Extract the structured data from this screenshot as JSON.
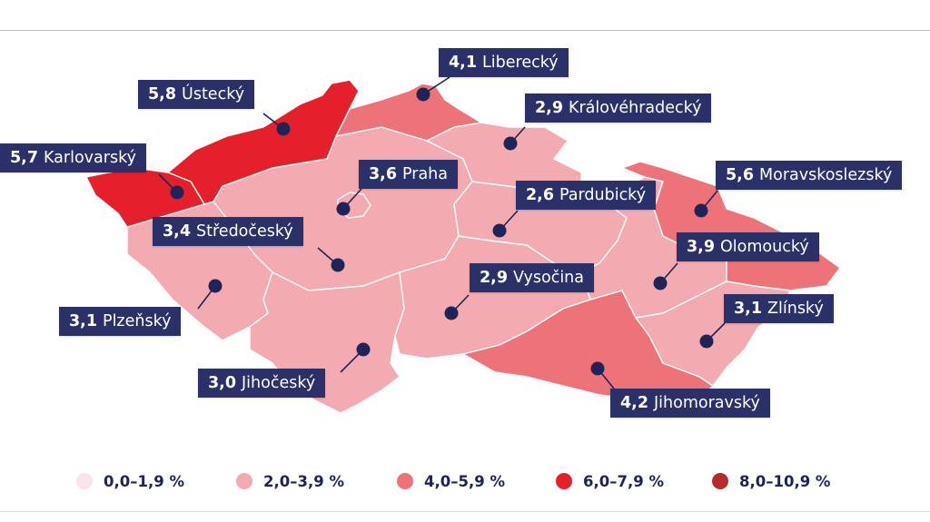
{
  "colors": {
    "bin_0": "#fbe3e7",
    "bin_1": "#f3aab1",
    "bin_2": "#ee7378",
    "bin_3": "#e5202a",
    "bin_4": "#b42c2e",
    "label_bg": "#2a3168",
    "dot": "#1e2457"
  },
  "regions": [
    {
      "name": "Liberecký",
      "value": "4,1"
    },
    {
      "name": "Ústecký",
      "value": "5,8"
    },
    {
      "name": "Královéhradecký",
      "value": "2,9"
    },
    {
      "name": "Karlovarský",
      "value": "5,7"
    },
    {
      "name": "Praha",
      "value": "3,6"
    },
    {
      "name": "Moravskoslezský",
      "value": "5,6"
    },
    {
      "name": "Pardubický",
      "value": "2,6"
    },
    {
      "name": "Středočeský",
      "value": "3,4"
    },
    {
      "name": "Olomoucký",
      "value": "3,9"
    },
    {
      "name": "Vysočina",
      "value": "2,9"
    },
    {
      "name": "Plzeňský",
      "value": "3,1"
    },
    {
      "name": "Zlínský",
      "value": "3,1"
    },
    {
      "name": "Jihočeský",
      "value": "3,0"
    },
    {
      "name": "Jihomoravský",
      "value": "4,2"
    }
  ],
  "legend": [
    {
      "label": "0,0–1,9 %"
    },
    {
      "label": "2,0–3,9 %"
    },
    {
      "label": "4,0–5,9 %"
    },
    {
      "label": "6,0–7,9 %"
    },
    {
      "label": "8,0–10,9 %"
    }
  ]
}
